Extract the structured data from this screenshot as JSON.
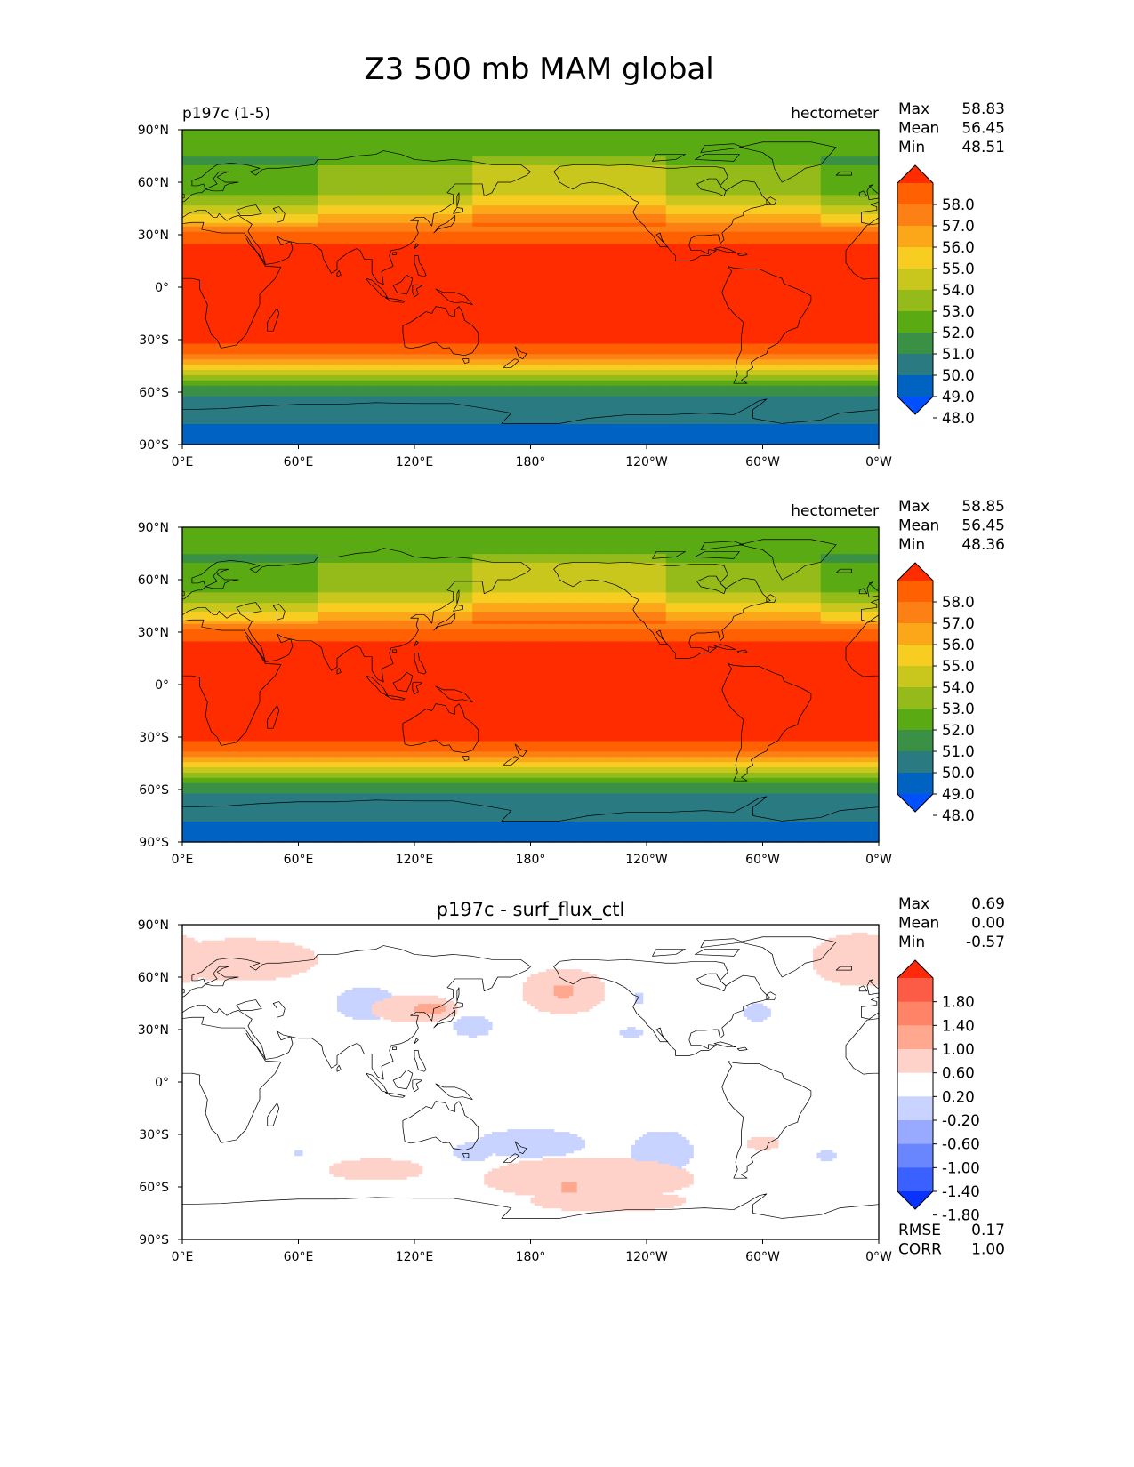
{
  "title": "Z3 500 mb MAM global",
  "x_ticks": [
    "0°E",
    "60°E",
    "120°E",
    "180°",
    "120°W",
    "60°W",
    "0°W"
  ],
  "y_ticks": [
    "90°N",
    "60°N",
    "30°N",
    "0°",
    "30°S",
    "60°S",
    "90°S"
  ],
  "colors": {
    "field_levels": [
      "#0050ff",
      "#0063c2",
      "#2a7a82",
      "#3a9146",
      "#5aaa14",
      "#94bb19",
      "#c9c71d",
      "#f7cd22",
      "#fca61a",
      "#fd8014",
      "#ff6102",
      "#ff2c00"
    ],
    "diff_levels": [
      "#0a32ff",
      "#3a61ff",
      "#6a86ff",
      "#98aaff",
      "#c9d3ff",
      "#ffffff",
      "#ffd2c9",
      "#ffa88f",
      "#ff8467",
      "#fc5c46",
      "#ff2a0c"
    ],
    "coastline": "#000000"
  },
  "panels": [
    {
      "left_title": "p197c (1-5)",
      "units": "hectometer",
      "center_title": "",
      "stats": [
        {
          "label": "Max",
          "value": "58.83"
        },
        {
          "label": "Mean",
          "value": "56.45"
        },
        {
          "label": "Min",
          "value": "48.51"
        }
      ],
      "colorbar_labels": [
        "58.0",
        "57.0",
        "56.0",
        "55.0",
        "54.0",
        "53.0",
        "52.0",
        "51.0",
        "50.0",
        "49.0",
        "48.0"
      ]
    },
    {
      "left_title": "",
      "units": "hectometer",
      "center_title": "",
      "stats": [
        {
          "label": "Max",
          "value": "58.85"
        },
        {
          "label": "Mean",
          "value": "56.45"
        },
        {
          "label": "Min",
          "value": "48.36"
        }
      ],
      "colorbar_labels": [
        "58.0",
        "57.0",
        "56.0",
        "55.0",
        "54.0",
        "53.0",
        "52.0",
        "51.0",
        "50.0",
        "49.0",
        "48.0"
      ]
    },
    {
      "left_title": "",
      "units": "",
      "center_title": "p197c - surf_flux_ctl",
      "stats": [
        {
          "label": "Max",
          "value": "0.69"
        },
        {
          "label": "Mean",
          "value": "0.00"
        },
        {
          "label": "Min",
          "value": "-0.57"
        }
      ],
      "colorbar_labels": [
        "1.80",
        "1.40",
        "1.00",
        "0.60",
        "0.20",
        "-0.20",
        "-0.60",
        "-1.00",
        "-1.40",
        "-1.80"
      ],
      "extra_stats": [
        {
          "label": "RMSE",
          "value": "0.17"
        },
        {
          "label": "CORR",
          "value": "1.00"
        }
      ]
    }
  ]
}
